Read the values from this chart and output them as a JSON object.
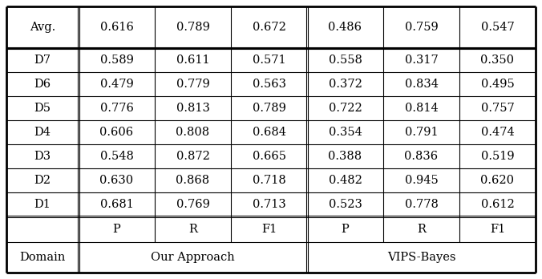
{
  "col_headers_row1": [
    "Domain",
    "Our Approach",
    "VIPS-Bayes"
  ],
  "col_headers_row2": [
    "",
    "P",
    "R",
    "F1",
    "P",
    "R",
    "F1"
  ],
  "rows": [
    [
      "D1",
      "0.681",
      "0.769",
      "0.713",
      "0.523",
      "0.778",
      "0.612"
    ],
    [
      "D2",
      "0.630",
      "0.868",
      "0.718",
      "0.482",
      "0.945",
      "0.620"
    ],
    [
      "D3",
      "0.548",
      "0.872",
      "0.665",
      "0.388",
      "0.836",
      "0.519"
    ],
    [
      "D4",
      "0.606",
      "0.808",
      "0.684",
      "0.354",
      "0.791",
      "0.474"
    ],
    [
      "D5",
      "0.776",
      "0.813",
      "0.789",
      "0.722",
      "0.814",
      "0.757"
    ],
    [
      "D6",
      "0.479",
      "0.779",
      "0.563",
      "0.372",
      "0.834",
      "0.495"
    ],
    [
      "D7",
      "0.589",
      "0.611",
      "0.571",
      "0.558",
      "0.317",
      "0.350"
    ]
  ],
  "avg_row": [
    "Avg.",
    "0.616",
    "0.789",
    "0.672",
    "0.486",
    "0.759",
    "0.547"
  ],
  "bg_color": "#ffffff",
  "line_color": "#000000",
  "text_color": "#000000",
  "font_size": 10.5
}
